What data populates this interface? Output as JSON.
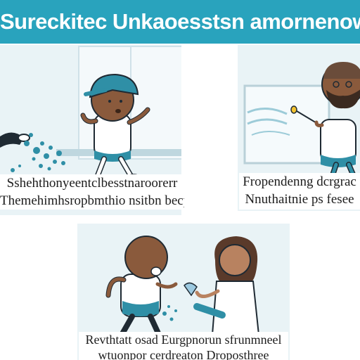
{
  "header": {
    "title": "Sureckitec Unkaoesstsn amornenow Ciatagning"
  },
  "panels": [
    {
      "caption_line1": "Sshehthonyeentclbesstnaroorerr",
      "caption_line2": "Themehimhsropbmthio nsitbn becps"
    },
    {
      "caption_line1": "Fropendenng dcrgrac",
      "caption_line2": "Nnuthaitnie ps fesee"
    },
    {
      "caption_line1": "Revthtatt osad Eurgpnorun sfrunmneel",
      "caption_line2": "wtuonpor cerdreaton Droposthree"
    }
  ],
  "colors": {
    "header_bg": "#29a3bd",
    "panel_bg": "#e9f3f6",
    "accent_teal": "#2f8fa6",
    "skin": "#8a5a3c"
  }
}
